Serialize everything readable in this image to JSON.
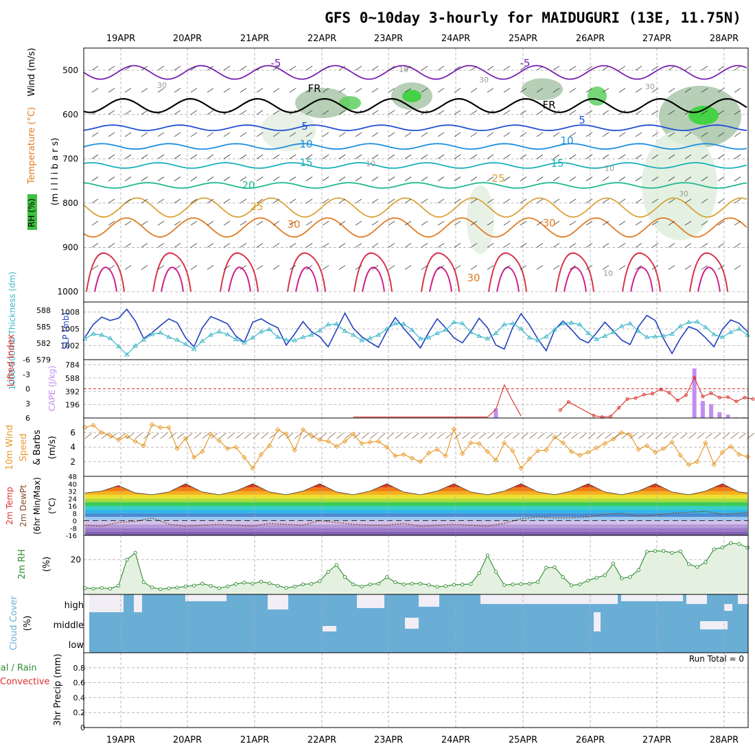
{
  "title": "GFS 0~10day 3-hourly for MAIDUGURI (13E, 11.75N)",
  "dates": [
    "19APR",
    "20APR",
    "21APR",
    "22APR",
    "23APR",
    "24APR",
    "25APR",
    "26APR",
    "27APR",
    "28APR"
  ],
  "colors": {
    "grid": "#aaaaaa",
    "slp": "#1f3fbf",
    "thickness": "#3ab5c8",
    "lifted": "#d9302a",
    "cape": "#c28cf0",
    "wind10m": "#e89a2a",
    "rh2m": "#2e8a2e",
    "rhfill": "#e4f1e1",
    "cloud": "#6aaed6",
    "cloudgap": "#f1eef6",
    "purple": "#7a1fb0",
    "frz": "#000000"
  },
  "chart_data": [
    {
      "id": "upper_air",
      "type": "heatmap",
      "axis_label_parts": [
        "RH (%)",
        "Temperature (°C)",
        "Wind (m/s)"
      ],
      "ylabel": "(m i l l i b a r s)",
      "yticks": [
        500,
        600,
        700,
        800,
        900,
        1000
      ],
      "ylim": [
        450,
        1000
      ],
      "isotherms": [
        {
          "level": "-5",
          "p": 505
        },
        {
          "level": "FR",
          "p": 580
        },
        {
          "level": "5",
          "p": 630
        },
        {
          "level": "10",
          "p": 672
        },
        {
          "level": "15",
          "p": 715
        },
        {
          "level": "20",
          "p": 760
        },
        {
          "level": "25",
          "p": 810
        },
        {
          "level": "30",
          "p": 855
        }
      ],
      "contour_labels": [
        "-5",
        "-5",
        "FR",
        "FR",
        "5",
        "5",
        "10",
        "10",
        "15",
        "15",
        "20",
        "25",
        "25",
        "30",
        "30",
        "30",
        "10",
        "10",
        "30",
        "30",
        "30",
        "10",
        "10",
        "30"
      ]
    },
    {
      "id": "slp_thickness",
      "type": "line",
      "left_label": "1000-500mb Thickness (dm)",
      "right_label": "SLP (mb)",
      "thickness_ticks": [
        579,
        582,
        585,
        588
      ],
      "slp_ticks": [
        1002,
        1005,
        1008
      ],
      "x": [
        0,
        3,
        6,
        9,
        12,
        15,
        18,
        21,
        24,
        27,
        30,
        33,
        36,
        39,
        42,
        45,
        48,
        51,
        54,
        57,
        60,
        63,
        66,
        69,
        72,
        75,
        78,
        81,
        84,
        87,
        90,
        93,
        96,
        99,
        102,
        105,
        108,
        111,
        114,
        117,
        120,
        123,
        126,
        129,
        132,
        135,
        138,
        141,
        144,
        147,
        150,
        153,
        156,
        159,
        162,
        165,
        168,
        171,
        174,
        177,
        180,
        183,
        186,
        189,
        192,
        195,
        198,
        201,
        204,
        207,
        210,
        213,
        216,
        219,
        222,
        225,
        228,
        231,
        234,
        237
      ],
      "series": [
        {
          "name": "SLP",
          "values": [
            1003.5,
            1005.8,
            1007.1,
            1006.5,
            1006.9,
            1008.5,
            1006.4,
            1003.3,
            1004.3,
            1005.6,
            1006.8,
            1006.1,
            1003.4,
            1001.8,
            1005.2,
            1007.2,
            1006.6,
            1005.9,
            1003.7,
            1002.6,
            1006.2,
            1006.8,
            1005.9,
            1005.2,
            1002.1,
            1004.1,
            1006.3,
            1004.5,
            1003.6,
            1001.8,
            1004.8,
            1007.8,
            1005.1,
            1003.6,
            1002.6,
            1001.7,
            1004.6,
            1007.0,
            1005.1,
            1003.4,
            1001.6,
            1004.4,
            1006.8,
            1005.2,
            1003.4,
            1002.5,
            1004.5,
            1006.9,
            1005.2,
            1002.1,
            1001.4,
            1005.2,
            1007.7,
            1005.7,
            1003.2,
            1001.1,
            1004.8,
            1006.4,
            1004.9,
            1003.2,
            1002.5,
            1004.3,
            1006.2,
            1004.6,
            1003.0,
            1002.2,
            1005.4,
            1007.4,
            1006.5,
            1003.2,
            1000.6,
            1003.3,
            1005.4,
            1004.8,
            1003.4,
            1001.8,
            1004.9,
            1006.6,
            1006.0,
            1004.5
          ]
        },
        {
          "name": "Thickness",
          "values": [
            582.8,
            583.7,
            583.5,
            582.9,
            581.4,
            579.9,
            581.5,
            582.6,
            583.6,
            583.9,
            583.1,
            582.6,
            581.8,
            580.9,
            582.4,
            583.5,
            584.1,
            583.6,
            582.7,
            582.1,
            583.0,
            584.1,
            584.5,
            583.1,
            582.6,
            582.5,
            583.1,
            583.5,
            584.3,
            585.4,
            585.5,
            584.2,
            583.5,
            582.5,
            582.9,
            583.5,
            584.6,
            585.6,
            585.5,
            584.4,
            582.8,
            583.0,
            583.8,
            584.4,
            585.8,
            585.6,
            584.0,
            583.3,
            582.8,
            583.8,
            585.4,
            585.6,
            584.6,
            583.0,
            582.5,
            583.2,
            584.5,
            585.6,
            585.7,
            585.4,
            583.8,
            582.7,
            583.3,
            584.0,
            585.1,
            585.6,
            584.2,
            583.1,
            583.2,
            583.3,
            583.7,
            585.1,
            585.8,
            585.9,
            584.9,
            583.6,
            583.1,
            584.0,
            584.6,
            583.5
          ]
        }
      ]
    },
    {
      "id": "lifted_cape",
      "type": "bar",
      "left_label": "Lifted Index",
      "right_label": "CAPE (J/kg)",
      "li_ticks": [
        "-6",
        "-3",
        "0",
        "3",
        "6"
      ],
      "cape_ticks": [
        196,
        392,
        588,
        784
      ],
      "x": [
        0,
        3,
        6,
        9,
        12,
        15,
        18,
        21,
        24,
        27,
        30,
        33,
        36,
        39,
        42,
        45,
        48,
        51,
        54,
        57,
        60,
        63,
        66,
        69,
        72,
        75,
        78,
        81,
        84,
        87,
        90,
        93,
        96,
        99,
        102,
        105,
        108,
        111,
        114,
        117,
        120,
        123,
        126,
        129,
        132,
        135,
        138,
        141,
        144,
        147,
        150,
        153,
        156,
        159,
        162,
        165,
        168,
        171,
        174,
        177,
        180,
        183,
        186,
        189,
        192,
        195,
        198,
        201,
        204,
        207,
        210,
        213,
        216,
        219,
        222,
        225,
        228,
        231,
        234,
        237
      ],
      "series": [
        {
          "name": "Lifted Index",
          "values": [
            null,
            null,
            null,
            null,
            null,
            null,
            null,
            null,
            null,
            null,
            null,
            null,
            null,
            null,
            null,
            null,
            null,
            null,
            null,
            null,
            null,
            null,
            null,
            null,
            null,
            null,
            null,
            null,
            null,
            null,
            null,
            null,
            5.8,
            null,
            null,
            null,
            null,
            null,
            null,
            null,
            null,
            null,
            null,
            null,
            null,
            null,
            null,
            null,
            5.8,
            4.2,
            -0.8,
            2.5,
            5.6,
            null,
            null,
            null,
            null,
            null,
            null,
            null,
            null,
            null,
            null,
            null,
            null,
            null,
            null,
            null,
            null,
            null,
            null,
            null,
            null,
            null,
            null,
            null,
            null,
            null,
            null,
            null
          ]
        },
        {
          "name": "CAPE",
          "values": [
            0,
            0,
            0,
            0,
            0,
            0,
            0,
            0,
            0,
            0,
            0,
            0,
            0,
            0,
            0,
            0,
            0,
            0,
            0,
            0,
            0,
            0,
            0,
            0,
            0,
            0,
            0,
            0,
            0,
            0,
            0,
            0,
            0,
            0,
            0,
            0,
            0,
            0,
            0,
            0,
            0,
            0,
            0,
            0,
            0,
            0,
            0,
            0,
            0,
            140,
            0,
            0,
            0,
            0,
            0,
            0,
            0,
            0,
            0,
            0,
            0,
            0,
            0,
            0,
            0,
            0,
            0,
            0,
            0,
            0,
            0,
            0,
            0,
            0,
            0,
            0,
            0,
            0,
            0,
            0
          ]
        }
      ],
      "li_tail": {
        "x": [
          170,
          173,
          176,
          179,
          182,
          185,
          188,
          191,
          194,
          197,
          200,
          203,
          206,
          209,
          212,
          215,
          218,
          221,
          224,
          227,
          230,
          233,
          236,
          239
        ],
        "values": [
          4.4,
          2.7,
          null,
          null,
          5.5,
          5.8,
          5.7,
          3.9,
          2.1,
          1.9,
          1.2,
          1.0,
          0.1,
          0.8,
          2.4,
          1.3,
          -2.3,
          1.6,
          0.9,
          1.8,
          1.7,
          2.6,
          1.8,
          2.1
        ]
      },
      "cape_tail": {
        "x": [
          218,
          221,
          224,
          227,
          230,
          233,
          236
        ],
        "values": [
          730,
          250,
          205,
          85,
          48,
          10,
          10
        ]
      }
    },
    {
      "id": "wind10m",
      "type": "line",
      "left_label": "10m Wind Speed & Barbs (m/s)",
      "yticks": [
        2,
        4,
        6
      ],
      "ylim": [
        0,
        8
      ],
      "x": [
        0,
        3,
        6,
        9,
        12,
        15,
        18,
        21,
        24,
        27,
        30,
        33,
        36,
        39,
        42,
        45,
        48,
        51,
        54,
        57,
        60,
        63,
        66,
        69,
        72,
        75,
        78,
        81,
        84,
        87,
        90,
        93,
        96,
        99,
        102,
        105,
        108,
        111,
        114,
        117,
        120,
        123,
        126,
        129,
        132,
        135,
        138,
        141,
        144,
        147,
        150,
        153,
        156,
        159,
        162,
        165,
        168,
        171,
        174,
        177,
        180,
        183,
        186,
        189,
        192,
        195,
        198,
        201,
        204,
        207,
        210,
        213,
        216,
        219,
        222,
        225,
        228,
        231,
        234,
        237
      ],
      "series": [
        {
          "name": "Speed",
          "values": [
            6.7,
            7.0,
            6.0,
            5.6,
            5.0,
            5.5,
            4.8,
            4.2,
            7.1,
            6.7,
            6.7,
            3.8,
            5.2,
            2.6,
            3.4,
            5.8,
            4.9,
            3.8,
            4.0,
            2.6,
            1.1,
            3.0,
            4.2,
            6.4,
            5.8,
            3.6,
            6.4,
            5.6,
            5.0,
            4.8,
            4.1,
            4.8,
            5.8,
            4.5,
            4.7,
            4.8,
            4.0,
            2.8,
            3.0,
            2.5,
            2.0,
            3.2,
            3.7,
            2.8,
            6.5,
            3.1,
            4.6,
            4.5,
            3.4,
            2.2,
            4.6,
            3.5,
            1.1,
            2.4,
            3.5,
            3.6,
            5.4,
            4.6,
            3.4,
            2.9,
            3.3,
            3.9,
            4.5,
            5.1,
            6.0,
            5.7,
            3.7,
            4.2,
            3.3,
            3.8,
            4.7,
            2.9,
            1.6,
            2.0,
            4.6,
            1.6,
            3.3,
            4.1,
            3.0,
            2.7
          ]
        }
      ]
    },
    {
      "id": "temp2m",
      "type": "area",
      "left_label": "2m Temp 2m DewPt (6hr Min/Max) (°C)",
      "yticks": [
        -16,
        -8,
        0,
        8,
        16,
        24,
        32,
        40,
        48
      ],
      "ylim": [
        -16,
        48
      ],
      "x": [
        0,
        6,
        12,
        18,
        24,
        30,
        36,
        42,
        48,
        54,
        60,
        66,
        72,
        78,
        84,
        90,
        96,
        102,
        108,
        114,
        120,
        126,
        132,
        138,
        144,
        150,
        156,
        162,
        168,
        174,
        180,
        186,
        192,
        198,
        204,
        210,
        216,
        222,
        228,
        234,
        237
      ],
      "series": [
        {
          "name": "Temp",
          "values": [
            30,
            32,
            38,
            30,
            28,
            31,
            40,
            31,
            28,
            32,
            40,
            31,
            28,
            32,
            40,
            31,
            28,
            32,
            40,
            31,
            28,
            32,
            40,
            31,
            28,
            32,
            40,
            31,
            28,
            32,
            40,
            31,
            28,
            32,
            40,
            31,
            28,
            32,
            40,
            31,
            30
          ]
        },
        {
          "name": "DewPt",
          "values": [
            -5,
            -6,
            -2,
            -1,
            3,
            -4,
            -6,
            -5,
            -4,
            -5,
            -6,
            -3,
            -4,
            -5,
            0,
            -2,
            -4,
            -5,
            -5,
            -3,
            -6,
            -5,
            -4,
            -5,
            -6,
            -3,
            2,
            4,
            3,
            3,
            4,
            7,
            8,
            5,
            6,
            8,
            9,
            10,
            7,
            8,
            9
          ]
        }
      ]
    },
    {
      "id": "rh2m",
      "type": "area",
      "left_label": "2m RH",
      "ylabel": "(%)",
      "yticks": [
        20
      ],
      "ylim": [
        0,
        40
      ],
      "x": [
        0,
        3,
        6,
        9,
        12,
        15,
        18,
        21,
        24,
        27,
        30,
        33,
        36,
        39,
        42,
        45,
        48,
        51,
        54,
        57,
        60,
        63,
        66,
        69,
        72,
        75,
        78,
        81,
        84,
        87,
        90,
        93,
        96,
        99,
        102,
        105,
        108,
        111,
        114,
        117,
        120,
        123,
        126,
        129,
        132,
        135,
        138,
        141,
        144,
        147,
        150,
        153,
        156,
        159,
        162,
        165,
        168,
        171,
        174,
        177,
        180,
        183,
        186,
        189,
        192,
        195,
        198,
        201,
        204,
        207,
        210,
        213,
        216,
        219,
        222,
        225,
        228,
        231,
        234,
        237
      ],
      "series": [
        {
          "name": "RH",
          "values": [
            3.6,
            3.4,
            3.8,
            3.3,
            5,
            20,
            24,
            7,
            4,
            3,
            3.5,
            4,
            4.6,
            5.1,
            6.2,
            5,
            3.6,
            4.6,
            6,
            6.8,
            6.2,
            7.4,
            6.4,
            5,
            3.8,
            4.5,
            5.8,
            6.1,
            7.6,
            13,
            17,
            10,
            5.8,
            4.5,
            5.8,
            6.2,
            10,
            7,
            5.8,
            6.2,
            6.2,
            5.5,
            4.4,
            4.8,
            5.6,
            5.7,
            6,
            12.3,
            22.5,
            13,
            5.4,
            5.8,
            6,
            6.2,
            7.2,
            15.4,
            15.6,
            10,
            5.2,
            5.8,
            8,
            9.6,
            11,
            17.8,
            9.2,
            10,
            14,
            24.6,
            25,
            25,
            24,
            24.8,
            17.4,
            15.8,
            18.5,
            26,
            27,
            29.6,
            29,
            27
          ]
        }
      ]
    },
    {
      "id": "cloud",
      "type": "heatmap",
      "left_label": "Cloud Cover (%)",
      "rows": [
        "high",
        "middle",
        "low"
      ]
    },
    {
      "id": "precip",
      "type": "bar",
      "left_label": "Total / Rain Convective",
      "ylabel": "3hr Precip (mm)",
      "yticks": [
        "0",
        "0.2",
        "0.4",
        "0.6",
        "0.8"
      ],
      "ylim": [
        0,
        1
      ],
      "annotation": "Run Total = 0",
      "values": []
    }
  ]
}
